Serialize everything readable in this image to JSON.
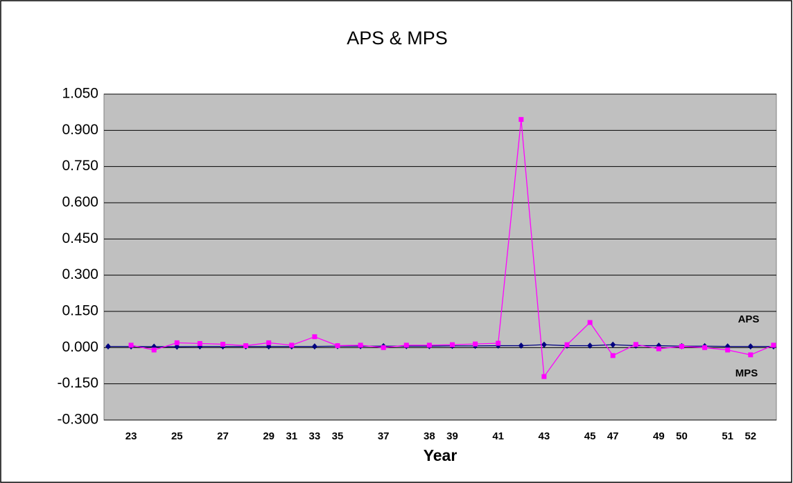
{
  "chart_data": {
    "type": "line",
    "title": "APS & MPS",
    "x_label": "Year",
    "categories": [
      null,
      "23",
      null,
      "25",
      null,
      "27",
      null,
      "29",
      "31",
      "33",
      "35",
      null,
      "37",
      null,
      "38",
      "39",
      null,
      "41",
      null,
      "43",
      null,
      "45",
      "47",
      null,
      "49",
      "50",
      null,
      "51",
      "52",
      null
    ],
    "series": [
      {
        "name": "APS",
        "color": "#000080",
        "marker": "diamond",
        "values": [
          0.005,
          0.005,
          0.004,
          0.004,
          0.005,
          0.005,
          0.005,
          0.005,
          0.005,
          0.005,
          0.006,
          0.006,
          0.006,
          0.006,
          0.006,
          0.007,
          0.007,
          0.008,
          0.008,
          0.012,
          0.008,
          0.008,
          0.012,
          0.008,
          0.008,
          0.006,
          0.006,
          0.005,
          0.005,
          0.005
        ]
      },
      {
        "name": "MPS",
        "color": "#ff00ff",
        "marker": "square",
        "values": [
          null,
          0.01,
          -0.01,
          0.02,
          0.017,
          0.014,
          0.008,
          0.02,
          0.01,
          0.045,
          0.008,
          0.01,
          0.0,
          0.01,
          0.01,
          0.012,
          0.015,
          0.018,
          0.945,
          -0.12,
          0.012,
          0.104,
          -0.033,
          0.013,
          -0.005,
          0.005,
          0.0,
          -0.01,
          -0.03,
          0.01
        ]
      }
    ],
    "ylim": [
      -0.3,
      1.05
    ],
    "yticks": [
      {
        "value": -0.3,
        "label": "-0.300"
      },
      {
        "value": -0.15,
        "label": "-0.150"
      },
      {
        "value": 0,
        "label": "0.000"
      },
      {
        "value": 0.15,
        "label": "0.150"
      },
      {
        "value": 0.3,
        "label": "0.300"
      },
      {
        "value": 0.45,
        "label": "0.450"
      },
      {
        "value": 0.6,
        "label": "0.600"
      },
      {
        "value": 0.75,
        "label": "0.750"
      },
      {
        "value": 0.9,
        "label": "0.900"
      },
      {
        "value": 1.05,
        "label": "1.050"
      }
    ],
    "grid": true,
    "annotations": [
      "APS",
      "MPS"
    ]
  }
}
